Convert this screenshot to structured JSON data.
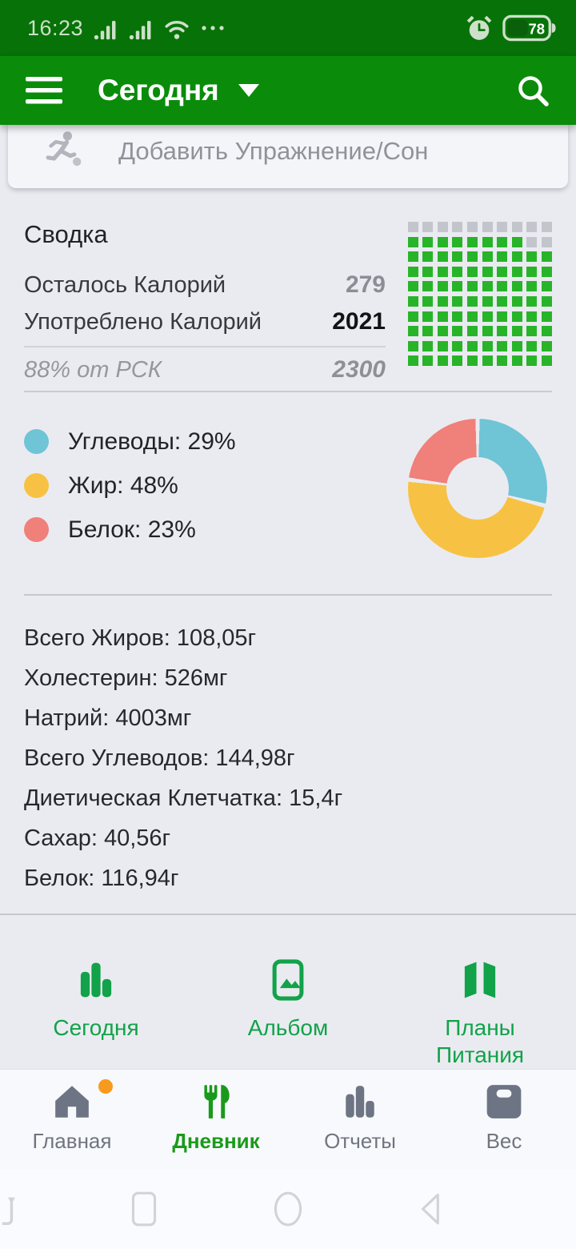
{
  "colors": {
    "status_bar_bg": "#077207",
    "app_bar_bg": "#0a8c0a",
    "page_bg": "#eaebf0",
    "card_bg": "#f4f5f9",
    "grid_green": "#28b428",
    "grid_gray": "#c3c5cd",
    "middle_nav_green": "#12a24a",
    "diary_green": "#1a9a1a",
    "tab_gray": "#6d7584",
    "badge_orange": "#f79b1f"
  },
  "status_bar": {
    "time": "16:23",
    "battery_level": "78",
    "icons": [
      "cellular-signal",
      "cellular-signal",
      "wifi",
      "more-dots",
      "alarm-clock",
      "battery"
    ]
  },
  "app_bar": {
    "title": "Сегодня",
    "icons": [
      "hamburger-menu",
      "caret-down",
      "search"
    ]
  },
  "add_row": {
    "label": "Добавить Упражнение/Сон",
    "icon": "exercise-runner"
  },
  "summary": {
    "title": "Сводка",
    "rows": [
      {
        "label": "Осталось Калорий",
        "value": "279"
      },
      {
        "label": "Употреблено Калорий",
        "value": "2021"
      }
    ],
    "rdi_row": {
      "label": "88% от РСК",
      "value": "2300"
    },
    "grid": {
      "rows": 10,
      "cols": 10,
      "filled_percent": 88
    }
  },
  "chart_data": {
    "type": "pie",
    "donut": true,
    "legend_position": "left",
    "series": [
      {
        "name": "Углеводы",
        "value": 29,
        "color": "#6fc4d6"
      },
      {
        "name": "Жир",
        "value": 48,
        "color": "#f7c243"
      },
      {
        "name": "Белок",
        "value": 23,
        "color": "#f0807a"
      }
    ]
  },
  "nutrition": {
    "items": [
      "Всего Жиров: 108,05г",
      "Холестерин: 526мг",
      "Натрий: 4003мг",
      "Всего Углеводов: 144,98г",
      "Диетическая Клетчатка: 15,4г",
      "Сахар: 40,56г",
      "Белок: 116,94г"
    ]
  },
  "middle_nav": {
    "items": [
      {
        "label": "Сегодня",
        "icon": "bar-chart"
      },
      {
        "label": "Альбом",
        "icon": "photo-album"
      },
      {
        "label": "Планы Питания",
        "icon": "meal-plans-map"
      }
    ]
  },
  "tab_bar": {
    "items": [
      {
        "label": "Главная",
        "icon": "home",
        "active": false,
        "badge": true
      },
      {
        "label": "Дневник",
        "icon": "food-diary",
        "active": true,
        "badge": false
      },
      {
        "label": "Отчеты",
        "icon": "reports-bar-chart",
        "active": false,
        "badge": false
      },
      {
        "label": "Вес",
        "icon": "weight-scale",
        "active": false,
        "badge": false
      }
    ]
  },
  "android_nav": {
    "buttons": [
      {
        "name": "recents",
        "icon": "recents"
      },
      {
        "name": "home",
        "icon": "nav-home"
      },
      {
        "name": "back",
        "icon": "back"
      },
      {
        "name": "auto-rotate",
        "icon": "auto-rotate"
      }
    ]
  }
}
